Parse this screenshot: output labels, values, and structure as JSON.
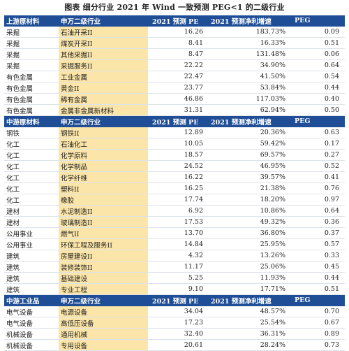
{
  "title": "图表 细分行业 2021 年 Wind 一致预测 PEG<1 的二级行业",
  "sections": [
    {
      "header": [
        "上游原材料",
        "申万二级行业",
        "2021 预测 PE",
        "2021 预测净利增速",
        "PEG"
      ],
      "rows": [
        [
          "采掘",
          "石油开采II",
          "16.26",
          "183.73%",
          "0.09"
        ],
        [
          "采掘",
          "煤炭开采II",
          "8.41",
          "16.33%",
          "0.51"
        ],
        [
          "采掘",
          "其他采掘II",
          "8.47",
          "131.48%",
          "0.06"
        ],
        [
          "采掘",
          "采掘服务II",
          "22.22",
          "34.90%",
          "0.64"
        ],
        [
          "有色金属",
          "工业金属",
          "22.47",
          "41.50%",
          "0.54"
        ],
        [
          "有色金属",
          "黄金II",
          "23.77",
          "53.84%",
          "0.44"
        ],
        [
          "有色金属",
          "稀有金属",
          "46.86",
          "117.03%",
          "0.40"
        ],
        [
          "有色金属",
          "金属非金属新材料",
          "31.31",
          "62.94%",
          "0.50"
        ]
      ]
    },
    {
      "header": [
        "中游原材料",
        "申万二级行业",
        "2021 预测 PE",
        "2021 预测净利增速",
        "PEG"
      ],
      "rows": [
        [
          "钢铁",
          "钢铁II",
          "12.89",
          "20.36%",
          "0.63"
        ],
        [
          "化工",
          "石油化工",
          "10.05",
          "59.42%",
          "0.17"
        ],
        [
          "化工",
          "化学原料",
          "18.57",
          "69.57%",
          "0.27"
        ],
        [
          "化工",
          "化学制品",
          "24.52",
          "46.95%",
          "0.52"
        ],
        [
          "化工",
          "化学纤维",
          "16.22",
          "39.57%",
          "0.41"
        ],
        [
          "化工",
          "塑料II",
          "16.25",
          "21.38%",
          "0.76"
        ],
        [
          "化工",
          "橡胶",
          "17.74",
          "18.20%",
          "0.97"
        ],
        [
          "建材",
          "水泥制造II",
          "6.92",
          "10.86%",
          "0.64"
        ],
        [
          "建材",
          "玻璃制造II",
          "17.53",
          "49.32%",
          "0.36"
        ],
        [
          "公用事业",
          "燃气II",
          "13.70",
          "36.80%",
          "0.37"
        ],
        [
          "公用事业",
          "环保工程及服务II",
          "14.84",
          "25.95%",
          "0.57"
        ],
        [
          "建筑",
          "房屋建设II",
          "4.32",
          "13.26%",
          "0.33"
        ],
        [
          "建筑",
          "装修装饰II",
          "11.17",
          "25.06%",
          "0.45"
        ],
        [
          "建筑",
          "基础建设",
          "5.25",
          "11.93%",
          "0.44"
        ],
        [
          "建筑",
          "专业工程",
          "9.10",
          "17.71%",
          "0.51"
        ]
      ]
    },
    {
      "header": [
        "中游工业品",
        "申万二级行业",
        "2021 预测 PE",
        "2021 预测净利增速",
        "PEG"
      ],
      "rows": [
        [
          "电气设备",
          "电源设备",
          "34.04",
          "48.57%",
          "0.70"
        ],
        [
          "电气设备",
          "高低压设备",
          "17.23",
          "25.54%",
          "0.67"
        ],
        [
          "机械设备",
          "通用机械",
          "32.40",
          "36.31%",
          "0.89"
        ],
        [
          "机械设备",
          "专用设备",
          "20.61",
          "28.24%",
          "0.73"
        ]
      ]
    }
  ]
}
